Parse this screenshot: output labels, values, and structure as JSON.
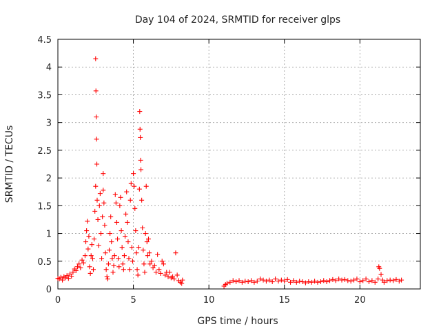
{
  "chart_data": {
    "type": "scatter",
    "title": "Day 104 of 2024, SRMTID for receiver glps",
    "xlabel": "GPS time / hours",
    "ylabel": "SRMTID / TECUs",
    "xlim": [
      0,
      24
    ],
    "ylim": [
      0,
      4.5
    ],
    "xticks": [
      0,
      5,
      10,
      15,
      20
    ],
    "yticks": [
      0,
      0.5,
      1,
      1.5,
      2,
      2.5,
      3,
      3.5,
      4,
      4.5
    ],
    "xtick_labels": [
      "0",
      "5",
      "10",
      "15",
      "20"
    ],
    "ytick_labels": [
      "0",
      "0.5",
      "1",
      "1.5",
      "2",
      "2.5",
      "3",
      "3.5",
      "4",
      "4.5"
    ],
    "grid": true,
    "marker": "+",
    "color": "#ff0000",
    "series": [
      {
        "name": "SRMTID",
        "points": [
          [
            0.0,
            0.19
          ],
          [
            0.1,
            0.18
          ],
          [
            0.2,
            0.21
          ],
          [
            0.3,
            0.16
          ],
          [
            0.4,
            0.22
          ],
          [
            0.5,
            0.2
          ],
          [
            0.6,
            0.24
          ],
          [
            0.7,
            0.19
          ],
          [
            0.8,
            0.27
          ],
          [
            0.9,
            0.23
          ],
          [
            1.0,
            0.3
          ],
          [
            1.1,
            0.36
          ],
          [
            1.2,
            0.33
          ],
          [
            1.3,
            0.4
          ],
          [
            1.4,
            0.45
          ],
          [
            1.5,
            0.38
          ],
          [
            1.6,
            0.52
          ],
          [
            1.7,
            0.47
          ],
          [
            1.8,
            0.6
          ],
          [
            1.85,
            0.85
          ],
          [
            1.9,
            1.05
          ],
          [
            1.95,
            1.22
          ],
          [
            2.0,
            0.72
          ],
          [
            2.05,
            0.95
          ],
          [
            2.1,
            0.4
          ],
          [
            2.15,
            0.28
          ],
          [
            2.2,
            0.6
          ],
          [
            2.25,
            0.8
          ],
          [
            2.3,
            0.55
          ],
          [
            2.35,
            0.35
          ],
          [
            2.4,
            0.9
          ],
          [
            2.45,
            1.4
          ],
          [
            2.5,
            1.85
          ],
          [
            2.5,
            4.15
          ],
          [
            2.52,
            3.57
          ],
          [
            2.54,
            3.1
          ],
          [
            2.56,
            2.7
          ],
          [
            2.58,
            2.25
          ],
          [
            2.6,
            1.6
          ],
          [
            2.65,
            1.25
          ],
          [
            2.7,
            0.78
          ],
          [
            2.75,
            1.5
          ],
          [
            2.8,
            1.72
          ],
          [
            2.85,
            1.0
          ],
          [
            2.9,
            0.55
          ],
          [
            2.95,
            1.3
          ],
          [
            3.0,
            2.08
          ],
          [
            3.0,
            1.78
          ],
          [
            3.05,
            1.55
          ],
          [
            3.1,
            1.15
          ],
          [
            3.15,
            0.65
          ],
          [
            3.2,
            0.35
          ],
          [
            3.25,
            0.22
          ],
          [
            3.3,
            0.18
          ],
          [
            3.35,
            0.45
          ],
          [
            3.4,
            0.7
          ],
          [
            3.45,
            1.0
          ],
          [
            3.5,
            1.3
          ],
          [
            3.55,
            0.85
          ],
          [
            3.6,
            0.55
          ],
          [
            3.65,
            0.3
          ],
          [
            3.7,
            0.42
          ],
          [
            3.75,
            0.6
          ],
          [
            3.8,
            1.7
          ],
          [
            3.85,
            1.55
          ],
          [
            3.9,
            1.2
          ],
          [
            3.95,
            0.9
          ],
          [
            4.0,
            0.55
          ],
          [
            4.05,
            0.4
          ],
          [
            4.1,
            1.5
          ],
          [
            4.15,
            1.65
          ],
          [
            4.2,
            1.05
          ],
          [
            4.25,
            0.75
          ],
          [
            4.3,
            0.45
          ],
          [
            4.35,
            0.35
          ],
          [
            4.4,
            0.6
          ],
          [
            4.45,
            0.95
          ],
          [
            4.5,
            1.35
          ],
          [
            4.55,
            1.75
          ],
          [
            4.6,
            1.2
          ],
          [
            4.65,
            0.85
          ],
          [
            4.7,
            0.55
          ],
          [
            4.75,
            0.35
          ],
          [
            4.8,
            1.6
          ],
          [
            4.85,
            1.9
          ],
          [
            4.9,
            0.75
          ],
          [
            4.95,
            0.5
          ],
          [
            5.0,
            2.08
          ],
          [
            5.05,
            1.85
          ],
          [
            5.1,
            1.45
          ],
          [
            5.15,
            1.05
          ],
          [
            5.2,
            0.65
          ],
          [
            5.25,
            0.35
          ],
          [
            5.3,
            0.25
          ],
          [
            5.35,
            0.75
          ],
          [
            5.4,
            1.8
          ],
          [
            5.42,
            3.2
          ],
          [
            5.44,
            2.88
          ],
          [
            5.46,
            2.73
          ],
          [
            5.48,
            2.32
          ],
          [
            5.5,
            2.15
          ],
          [
            5.55,
            1.6
          ],
          [
            5.6,
            1.1
          ],
          [
            5.65,
            0.7
          ],
          [
            5.7,
            0.45
          ],
          [
            5.75,
            0.3
          ],
          [
            5.8,
            1.0
          ],
          [
            5.85,
            1.85
          ],
          [
            5.9,
            0.85
          ],
          [
            5.95,
            0.6
          ],
          [
            6.0,
            0.9
          ],
          [
            6.05,
            0.65
          ],
          [
            6.1,
            0.45
          ],
          [
            6.2,
            0.5
          ],
          [
            6.3,
            0.38
          ],
          [
            6.4,
            0.42
          ],
          [
            6.5,
            0.3
          ],
          [
            6.6,
            0.62
          ],
          [
            6.7,
            0.35
          ],
          [
            6.8,
            0.28
          ],
          [
            6.9,
            0.5
          ],
          [
            7.0,
            0.45
          ],
          [
            7.1,
            0.25
          ],
          [
            7.2,
            0.3
          ],
          [
            7.3,
            0.22
          ],
          [
            7.4,
            0.3
          ],
          [
            7.5,
            0.2
          ],
          [
            7.6,
            0.22
          ],
          [
            7.7,
            0.18
          ],
          [
            7.8,
            0.65
          ],
          [
            7.9,
            0.25
          ],
          [
            8.0,
            0.15
          ],
          [
            8.1,
            0.12
          ],
          [
            8.2,
            0.1
          ],
          [
            8.25,
            0.16
          ],
          [
            11.0,
            0.05
          ],
          [
            11.1,
            0.08
          ],
          [
            11.2,
            0.1
          ],
          [
            11.4,
            0.12
          ],
          [
            11.6,
            0.15
          ],
          [
            11.8,
            0.13
          ],
          [
            12.0,
            0.15
          ],
          [
            12.2,
            0.12
          ],
          [
            12.4,
            0.14
          ],
          [
            12.6,
            0.13
          ],
          [
            12.8,
            0.15
          ],
          [
            13.0,
            0.12
          ],
          [
            13.2,
            0.14
          ],
          [
            13.4,
            0.18
          ],
          [
            13.6,
            0.16
          ],
          [
            13.8,
            0.14
          ],
          [
            14.0,
            0.16
          ],
          [
            14.2,
            0.13
          ],
          [
            14.4,
            0.18
          ],
          [
            14.6,
            0.14
          ],
          [
            14.8,
            0.16
          ],
          [
            15.0,
            0.14
          ],
          [
            15.2,
            0.17
          ],
          [
            15.4,
            0.12
          ],
          [
            15.6,
            0.15
          ],
          [
            15.8,
            0.12
          ],
          [
            16.0,
            0.14
          ],
          [
            16.2,
            0.13
          ],
          [
            16.4,
            0.11
          ],
          [
            16.6,
            0.13
          ],
          [
            16.8,
            0.12
          ],
          [
            17.0,
            0.14
          ],
          [
            17.2,
            0.12
          ],
          [
            17.4,
            0.13
          ],
          [
            17.6,
            0.15
          ],
          [
            17.8,
            0.13
          ],
          [
            18.0,
            0.15
          ],
          [
            18.2,
            0.17
          ],
          [
            18.4,
            0.15
          ],
          [
            18.6,
            0.18
          ],
          [
            18.8,
            0.16
          ],
          [
            19.0,
            0.17
          ],
          [
            19.2,
            0.15
          ],
          [
            19.4,
            0.14
          ],
          [
            19.6,
            0.16
          ],
          [
            19.8,
            0.18
          ],
          [
            20.0,
            0.13
          ],
          [
            20.2,
            0.15
          ],
          [
            20.4,
            0.18
          ],
          [
            20.6,
            0.13
          ],
          [
            20.8,
            0.15
          ],
          [
            21.0,
            0.12
          ],
          [
            21.2,
            0.18
          ],
          [
            21.25,
            0.4
          ],
          [
            21.3,
            0.37
          ],
          [
            21.4,
            0.26
          ],
          [
            21.5,
            0.16
          ],
          [
            21.6,
            0.12
          ],
          [
            21.8,
            0.15
          ],
          [
            22.0,
            0.16
          ],
          [
            22.2,
            0.15
          ],
          [
            22.4,
            0.17
          ],
          [
            22.6,
            0.14
          ],
          [
            22.75,
            0.16
          ]
        ]
      }
    ]
  }
}
